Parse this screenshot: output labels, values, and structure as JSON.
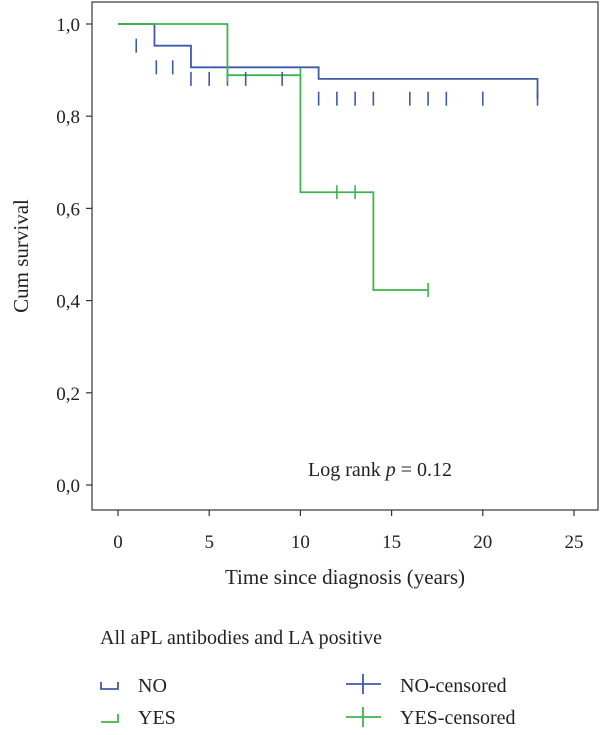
{
  "chart_data": {
    "type": "line",
    "subtype": "kaplan-meier",
    "xlabel": "Time since diagnosis (years)",
    "ylabel": "Cum survival",
    "xlim": [
      0,
      25
    ],
    "ylim": [
      0,
      1
    ],
    "x_ticks": [
      0,
      5,
      10,
      15,
      20,
      25
    ],
    "y_ticks": [
      0,
      0.2,
      0.4,
      0.6,
      0.8,
      1.0
    ],
    "x_tick_labels": [
      "0",
      "5",
      "10",
      "15",
      "20",
      "25"
    ],
    "y_tick_labels": [
      "0,0",
      "0,2",
      "0,4",
      "0,6",
      "0,8",
      "1,0"
    ],
    "grid": false,
    "annotation": {
      "prefix": "Log rank ",
      "italic": "p",
      "suffix": " = 0.12"
    },
    "legend": {
      "title": "All aPL antibodies and LA positive",
      "placement": "bottom",
      "entries": [
        "NO",
        "YES",
        "NO-censored",
        "YES-censored"
      ]
    },
    "series": [
      {
        "name": "NO",
        "color": "#3f5aa8",
        "steps": [
          [
            0,
            1.0
          ],
          [
            2,
            0.953
          ],
          [
            4,
            0.906
          ],
          [
            11,
            0.881
          ],
          [
            23,
            0.838
          ]
        ],
        "censored": [
          [
            1,
            0.953
          ],
          [
            2.1,
            0.906
          ],
          [
            3,
            0.906
          ],
          [
            4,
            0.881
          ],
          [
            5,
            0.881
          ],
          [
            6,
            0.881
          ],
          [
            7,
            0.881
          ],
          [
            9,
            0.881
          ],
          [
            11,
            0.838
          ],
          [
            12,
            0.838
          ],
          [
            13,
            0.838
          ],
          [
            14,
            0.838
          ],
          [
            16,
            0.838
          ],
          [
            17,
            0.838
          ],
          [
            18,
            0.838
          ],
          [
            20,
            0.838
          ],
          [
            23,
            0.838
          ]
        ]
      },
      {
        "name": "YES",
        "color": "#3cb54a",
        "steps": [
          [
            0,
            1.0
          ],
          [
            6,
            0.889
          ],
          [
            10,
            0.635
          ],
          [
            14,
            0.423
          ],
          [
            17,
            0.423
          ]
        ],
        "censored": [
          [
            6,
            0.889
          ],
          [
            10,
            0.889
          ],
          [
            12,
            0.635
          ],
          [
            13,
            0.635
          ],
          [
            17,
            0.423
          ]
        ]
      }
    ]
  }
}
